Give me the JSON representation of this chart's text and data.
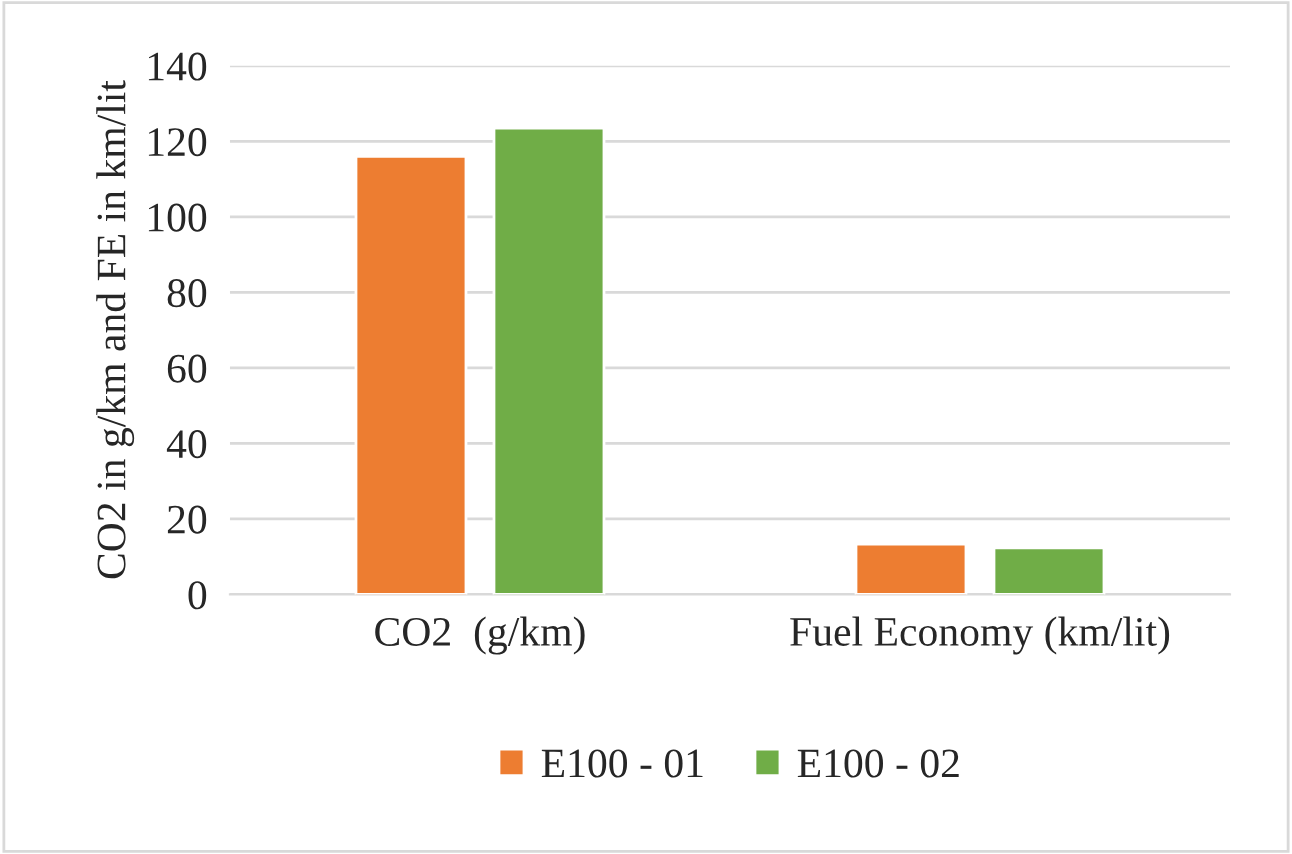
{
  "chart_data": {
    "type": "bar",
    "ylabel": "CO2 in g/km and FE in km/lit",
    "categories": [
      "CO2  (g/km)",
      "Fuel Economy (km/lit)"
    ],
    "series": [
      {
        "name": "E100 - 01",
        "color": "#ed7d31",
        "values": [
          116,
          13.3
        ]
      },
      {
        "name": "E100 - 02",
        "color": "#70ad47",
        "values": [
          123.5,
          12.3
        ]
      }
    ],
    "ylim": [
      0,
      140
    ],
    "yticks": [
      0,
      20,
      40,
      60,
      80,
      100,
      120,
      140
    ],
    "grid": "y",
    "legend": "bottom"
  }
}
